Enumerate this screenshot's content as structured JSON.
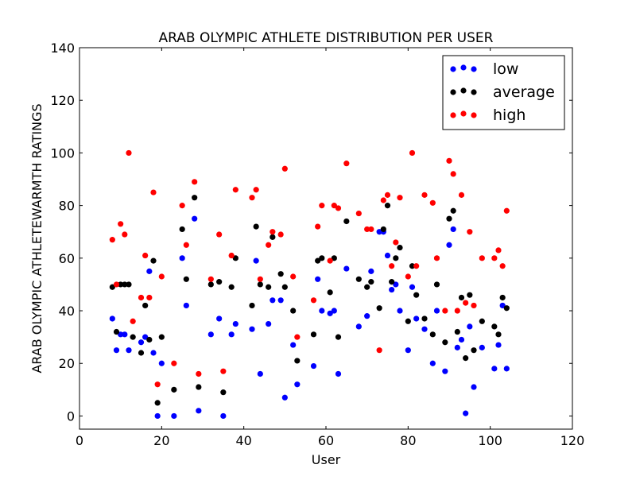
{
  "chart_data": {
    "type": "scatter",
    "title": "ARAB OLYMPIC ATHLETE DISTRIBUTION PER USER",
    "xlabel": "User",
    "ylabel": "ARAB OLYMPIC ATHLETEWARMTH RATINGS",
    "xlim": [
      0,
      120
    ],
    "ylim": [
      -5,
      140
    ],
    "xticks": [
      "0",
      "20",
      "40",
      "60",
      "80",
      "100",
      "120"
    ],
    "yticks": [
      "0",
      "20",
      "40",
      "60",
      "80",
      "100",
      "120",
      "140"
    ],
    "grid": false,
    "legend_position": "top-right",
    "series": [
      {
        "name": "low",
        "color": "#0000ff",
        "points": [
          [
            8,
            37
          ],
          [
            9,
            25
          ],
          [
            10,
            31
          ],
          [
            11,
            31
          ],
          [
            12,
            25
          ],
          [
            15,
            28
          ],
          [
            16,
            30
          ],
          [
            17,
            55
          ],
          [
            18,
            24
          ],
          [
            19,
            0
          ],
          [
            20,
            20
          ],
          [
            23,
            0
          ],
          [
            25,
            60
          ],
          [
            26,
            42
          ],
          [
            28,
            75
          ],
          [
            29,
            2
          ],
          [
            32,
            31
          ],
          [
            34,
            37
          ],
          [
            35,
            0
          ],
          [
            37,
            31
          ],
          [
            38,
            35
          ],
          [
            42,
            33
          ],
          [
            43,
            59
          ],
          [
            44,
            16
          ],
          [
            46,
            35
          ],
          [
            47,
            44
          ],
          [
            49,
            44
          ],
          [
            50,
            7
          ],
          [
            52,
            27
          ],
          [
            53,
            12
          ],
          [
            57,
            19
          ],
          [
            58,
            52
          ],
          [
            59,
            40
          ],
          [
            61,
            39
          ],
          [
            62,
            40
          ],
          [
            63,
            16
          ],
          [
            65,
            56
          ],
          [
            68,
            34
          ],
          [
            70,
            38
          ],
          [
            71,
            55
          ],
          [
            73,
            70
          ],
          [
            74,
            70
          ],
          [
            75,
            61
          ],
          [
            76,
            48
          ],
          [
            77,
            50
          ],
          [
            78,
            40
          ],
          [
            80,
            25
          ],
          [
            81,
            49
          ],
          [
            82,
            37
          ],
          [
            84,
            33
          ],
          [
            86,
            20
          ],
          [
            87,
            40
          ],
          [
            89,
            17
          ],
          [
            90,
            65
          ],
          [
            91,
            71
          ],
          [
            92,
            26
          ],
          [
            93,
            29
          ],
          [
            94,
            1
          ],
          [
            95,
            34
          ],
          [
            96,
            11
          ],
          [
            98,
            26
          ],
          [
            101,
            18
          ],
          [
            102,
            27
          ],
          [
            103,
            42
          ],
          [
            104,
            18
          ]
        ]
      },
      {
        "name": "average",
        "color": "#000000",
        "points": [
          [
            8,
            49
          ],
          [
            9,
            32
          ],
          [
            10,
            50
          ],
          [
            11,
            50
          ],
          [
            12,
            50
          ],
          [
            13,
            30
          ],
          [
            15,
            24
          ],
          [
            16,
            42
          ],
          [
            17,
            29
          ],
          [
            18,
            59
          ],
          [
            19,
            5
          ],
          [
            20,
            30
          ],
          [
            23,
            10
          ],
          [
            25,
            71
          ],
          [
            26,
            52
          ],
          [
            28,
            83
          ],
          [
            29,
            11
          ],
          [
            32,
            50
          ],
          [
            34,
            51
          ],
          [
            35,
            9
          ],
          [
            37,
            49
          ],
          [
            38,
            60
          ],
          [
            42,
            42
          ],
          [
            43,
            72
          ],
          [
            44,
            50
          ],
          [
            46,
            49
          ],
          [
            47,
            68
          ],
          [
            49,
            54
          ],
          [
            50,
            49
          ],
          [
            52,
            40
          ],
          [
            53,
            21
          ],
          [
            57,
            31
          ],
          [
            58,
            59
          ],
          [
            59,
            60
          ],
          [
            61,
            47
          ],
          [
            62,
            60
          ],
          [
            63,
            30
          ],
          [
            65,
            74
          ],
          [
            68,
            52
          ],
          [
            70,
            49
          ],
          [
            71,
            51
          ],
          [
            73,
            41
          ],
          [
            74,
            71
          ],
          [
            75,
            80
          ],
          [
            76,
            51
          ],
          [
            77,
            60
          ],
          [
            78,
            64
          ],
          [
            80,
            36
          ],
          [
            81,
            57
          ],
          [
            82,
            46
          ],
          [
            84,
            37
          ],
          [
            86,
            31
          ],
          [
            87,
            50
          ],
          [
            89,
            28
          ],
          [
            90,
            75
          ],
          [
            91,
            78
          ],
          [
            92,
            32
          ],
          [
            93,
            45
          ],
          [
            94,
            22
          ],
          [
            95,
            46
          ],
          [
            96,
            25
          ],
          [
            98,
            36
          ],
          [
            101,
            34
          ],
          [
            102,
            31
          ],
          [
            103,
            45
          ],
          [
            104,
            41
          ]
        ]
      },
      {
        "name": "high",
        "color": "#ff0000",
        "points": [
          [
            8,
            67
          ],
          [
            9,
            50
          ],
          [
            10,
            73
          ],
          [
            11,
            69
          ],
          [
            12,
            100
          ],
          [
            13,
            36
          ],
          [
            15,
            45
          ],
          [
            16,
            61
          ],
          [
            17,
            45
          ],
          [
            18,
            85
          ],
          [
            19,
            12
          ],
          [
            20,
            53
          ],
          [
            23,
            20
          ],
          [
            25,
            80
          ],
          [
            26,
            65
          ],
          [
            28,
            89
          ],
          [
            29,
            16
          ],
          [
            32,
            52
          ],
          [
            34,
            69
          ],
          [
            35,
            17
          ],
          [
            37,
            61
          ],
          [
            38,
            86
          ],
          [
            42,
            83
          ],
          [
            43,
            86
          ],
          [
            44,
            52
          ],
          [
            46,
            65
          ],
          [
            47,
            70
          ],
          [
            49,
            69
          ],
          [
            50,
            94
          ],
          [
            52,
            53
          ],
          [
            53,
            30
          ],
          [
            57,
            44
          ],
          [
            58,
            72
          ],
          [
            59,
            80
          ],
          [
            61,
            59
          ],
          [
            62,
            80
          ],
          [
            63,
            79
          ],
          [
            65,
            96
          ],
          [
            68,
            77
          ],
          [
            70,
            71
          ],
          [
            71,
            71
          ],
          [
            73,
            25
          ],
          [
            74,
            82
          ],
          [
            75,
            84
          ],
          [
            76,
            57
          ],
          [
            77,
            66
          ],
          [
            78,
            83
          ],
          [
            80,
            53
          ],
          [
            81,
            100
          ],
          [
            82,
            57
          ],
          [
            84,
            84
          ],
          [
            86,
            81
          ],
          [
            87,
            60
          ],
          [
            89,
            40
          ],
          [
            90,
            97
          ],
          [
            91,
            92
          ],
          [
            92,
            40
          ],
          [
            93,
            84
          ],
          [
            94,
            43
          ],
          [
            95,
            70
          ],
          [
            96,
            42
          ],
          [
            98,
            60
          ],
          [
            101,
            60
          ],
          [
            102,
            63
          ],
          [
            103,
            57
          ],
          [
            104,
            78
          ]
        ]
      }
    ]
  }
}
